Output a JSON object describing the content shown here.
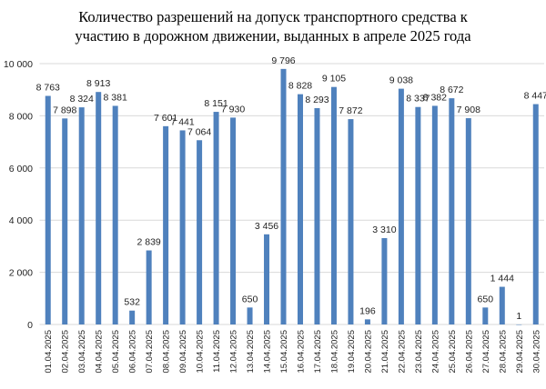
{
  "chart_data": {
    "type": "bar",
    "title": "Количество разрешений на допуск транспортного средства к участию в дорожном движении, выданных в апреле 2025 года",
    "title_lines": [
      "Количество разрешений на допуск транспортного средства к",
      "участию в дорожном движении, выданных в апреле 2025 года"
    ],
    "xlabel": "",
    "ylabel": "",
    "ylim": [
      0,
      10000
    ],
    "yticks": [
      0,
      2000,
      4000,
      6000,
      8000,
      10000
    ],
    "ytick_labels": [
      "0",
      "2 000",
      "4 000",
      "6 000",
      "8 000",
      "10 000"
    ],
    "grid": true,
    "bar_color": "#4F81BD",
    "categories": [
      "01.04.2025",
      "02.04.2025",
      "03.04.2025",
      "04.04.2025",
      "05.04.2025",
      "06.04.2025",
      "07.04.2025",
      "08.04.2025",
      "09.04.2025",
      "10.04.2025",
      "11.04.2025",
      "12.04.2025",
      "13.04.2025",
      "14.04.2025",
      "15.04.2025",
      "16.04.2025",
      "17.04.2025",
      "18.04.2025",
      "19.04.2025",
      "20.04.2025",
      "21.04.2025",
      "22.04.2025",
      "23.04.2025",
      "24.04.2025",
      "25.04.2025",
      "26.04.2025",
      "27.04.2025",
      "28.04.2025",
      "29.04.2025",
      "30.04.2025"
    ],
    "values": [
      8763,
      7898,
      8324,
      8913,
      8381,
      532,
      2839,
      7601,
      7441,
      7064,
      8151,
      7930,
      650,
      3456,
      9796,
      8828,
      8293,
      9105,
      7872,
      196,
      3310,
      9038,
      8337,
      8382,
      8672,
      7908,
      650,
      1444,
      1,
      8447
    ],
    "data_labels": [
      "8 763",
      "7 898",
      "8 324",
      "8 913",
      "8 381",
      "532",
      "2 839",
      "7 601",
      "7 441",
      "7 064",
      "8 151",
      "7 930",
      "650",
      "3 456",
      "9 796",
      "8 828",
      "8 293",
      "9 105",
      "7 872",
      "196",
      "3 310",
      "9 038",
      "8 337",
      "8 382",
      "8 672",
      "7 908",
      "650",
      "1 444",
      "1",
      "8 447"
    ]
  }
}
